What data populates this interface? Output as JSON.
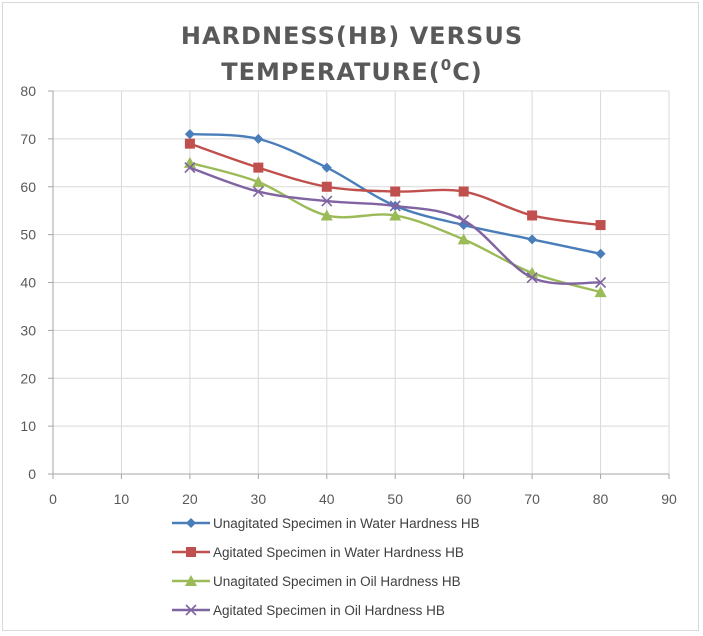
{
  "chart_data": {
    "type": "scatter",
    "title_lines": [
      "HARDNESS(HB) VERSUS",
      "TEMPERATURE(",
      "0",
      "C)"
    ],
    "xlabel": "",
    "ylabel": "",
    "xlim": [
      0,
      90
    ],
    "ylim": [
      0,
      80
    ],
    "x_ticks": [
      "0",
      "10",
      "20",
      "30",
      "40",
      "50",
      "60",
      "70",
      "80",
      "90"
    ],
    "y_ticks": [
      "0",
      "10",
      "20",
      "30",
      "40",
      "50",
      "60",
      "70",
      "80"
    ],
    "grid": true,
    "legend_position": "bottom",
    "x": [
      20,
      30,
      40,
      50,
      60,
      70,
      80
    ],
    "series": [
      {
        "name": "Unagitated Specimen in Water Hardness HB",
        "color": "#4a7ebb",
        "marker": "diamond",
        "values": [
          71,
          70,
          64,
          56,
          52,
          49,
          46
        ]
      },
      {
        "name": "Agitated Specimen in Water Hardness HB",
        "color": "#c0504d",
        "marker": "square",
        "values": [
          69,
          64,
          60,
          59,
          59,
          54,
          52
        ]
      },
      {
        "name": "Unagitated Specimen in Oil Hardness HB",
        "color": "#9bbb59",
        "marker": "triangle",
        "values": [
          65,
          61,
          54,
          54,
          49,
          42,
          38
        ]
      },
      {
        "name": "Agitated Specimen in Oil Hardness HB",
        "color": "#8064a2",
        "marker": "x",
        "values": [
          64,
          59,
          57,
          56,
          53,
          41,
          40
        ]
      }
    ]
  }
}
